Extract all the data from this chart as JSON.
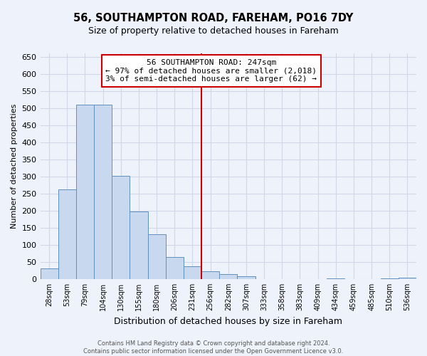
{
  "title": "56, SOUTHAMPTON ROAD, FAREHAM, PO16 7DY",
  "subtitle": "Size of property relative to detached houses in Fareham",
  "xlabel": "Distribution of detached houses by size in Fareham",
  "ylabel": "Number of detached properties",
  "bin_labels": [
    "28sqm",
    "53sqm",
    "79sqm",
    "104sqm",
    "130sqm",
    "155sqm",
    "180sqm",
    "206sqm",
    "231sqm",
    "256sqm",
    "282sqm",
    "307sqm",
    "333sqm",
    "358sqm",
    "383sqm",
    "409sqm",
    "434sqm",
    "459sqm",
    "485sqm",
    "510sqm",
    "536sqm"
  ],
  "bar_values": [
    32,
    263,
    511,
    511,
    301,
    197,
    131,
    65,
    38,
    22,
    14,
    8,
    0,
    0,
    0,
    0,
    2,
    0,
    0,
    2,
    5
  ],
  "bar_color": "#c8d8ee",
  "bar_edge_color": "#6090c0",
  "vline_x_data": 9.0,
  "vline_color": "#cc0000",
  "annotation_line1": "56 SOUTHAMPTON ROAD: 247sqm",
  "annotation_line2": "← 97% of detached houses are smaller (2,018)",
  "annotation_line3": "3% of semi-detached houses are larger (62) →",
  "ylim": [
    0,
    660
  ],
  "yticks": [
    0,
    50,
    100,
    150,
    200,
    250,
    300,
    350,
    400,
    450,
    500,
    550,
    600,
    650
  ],
  "footer_line1": "Contains HM Land Registry data © Crown copyright and database right 2024.",
  "footer_line2": "Contains public sector information licensed under the Open Government Licence v3.0.",
  "background_color": "#eef2fa",
  "grid_color": "#d0d8e8",
  "title_fontsize": 10.5,
  "subtitle_fontsize": 9
}
